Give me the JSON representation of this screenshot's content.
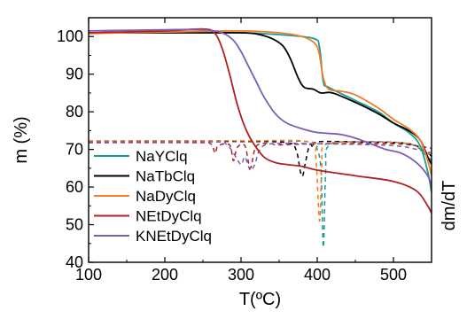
{
  "chart_data": {
    "type": "line",
    "xlabel": "T(ºC)",
    "ylabel": "m (%)",
    "y2label": "dm/dT",
    "xlim": [
      100,
      550
    ],
    "ylim": [
      40,
      105
    ],
    "xticks": [
      "100",
      "200",
      "300",
      "400",
      "500"
    ],
    "yticks": [
      "40",
      "50",
      "60",
      "70",
      "80",
      "90",
      "100"
    ],
    "legend_position": "left",
    "series": [
      {
        "name": "NaYClq",
        "color": "#169c94",
        "tg": [
          [
            100,
            101.0
          ],
          [
            200,
            101.0
          ],
          [
            300,
            101.0
          ],
          [
            350,
            100.5
          ],
          [
            395,
            99.5
          ],
          [
            403,
            97
          ],
          [
            408,
            88
          ],
          [
            415,
            86.5
          ],
          [
            450,
            83
          ],
          [
            480,
            80
          ],
          [
            500,
            77
          ],
          [
            520,
            74.5
          ],
          [
            535,
            71
          ],
          [
            545,
            64
          ],
          [
            550,
            58.5
          ]
        ],
        "dtg": [
          [
            100,
            72.2
          ],
          [
            300,
            72.2
          ],
          [
            390,
            72
          ],
          [
            400,
            70
          ],
          [
            405,
            64
          ],
          [
            408,
            44
          ],
          [
            411,
            64
          ],
          [
            415,
            71
          ],
          [
            450,
            72
          ],
          [
            520,
            71.5
          ],
          [
            545,
            68
          ],
          [
            550,
            67
          ]
        ]
      },
      {
        "name": "NaTbClq",
        "color": "#000000",
        "tg": [
          [
            100,
            101.0
          ],
          [
            250,
            101.0
          ],
          [
            300,
            101.0
          ],
          [
            320,
            100.7
          ],
          [
            340,
            99.5
          ],
          [
            355,
            97.5
          ],
          [
            365,
            94
          ],
          [
            375,
            89
          ],
          [
            383,
            86.5
          ],
          [
            395,
            86
          ],
          [
            405,
            85
          ],
          [
            420,
            85
          ],
          [
            450,
            82.5
          ],
          [
            480,
            79.5
          ],
          [
            500,
            77
          ],
          [
            520,
            75
          ],
          [
            535,
            72.5
          ],
          [
            545,
            68
          ],
          [
            550,
            66
          ]
        ],
        "dtg": [
          [
            100,
            72.1
          ],
          [
            300,
            72.1
          ],
          [
            360,
            71.8
          ],
          [
            372,
            70
          ],
          [
            378,
            64
          ],
          [
            381,
            63
          ],
          [
            384,
            66
          ],
          [
            390,
            71.2
          ],
          [
            395,
            70.5
          ],
          [
            400,
            72
          ],
          [
            450,
            72
          ],
          [
            520,
            71.5
          ],
          [
            545,
            69
          ],
          [
            550,
            68
          ]
        ]
      },
      {
        "name": "NaDyClq",
        "color": "#f07c28",
        "tg": [
          [
            100,
            100.8
          ],
          [
            200,
            101.2
          ],
          [
            300,
            101.5
          ],
          [
            350,
            101
          ],
          [
            380,
            100
          ],
          [
            395,
            98.5
          ],
          [
            402,
            96
          ],
          [
            408,
            89
          ],
          [
            415,
            86
          ],
          [
            430,
            85.5
          ],
          [
            450,
            84.5
          ],
          [
            480,
            81
          ],
          [
            500,
            78
          ],
          [
            520,
            75.5
          ],
          [
            535,
            72.5
          ],
          [
            545,
            67
          ],
          [
            550,
            63
          ]
        ],
        "dtg": [
          [
            100,
            72.3
          ],
          [
            300,
            72.3
          ],
          [
            390,
            72
          ],
          [
            398,
            68
          ],
          [
            403,
            51
          ],
          [
            406,
            66
          ],
          [
            410,
            71.2
          ],
          [
            450,
            72
          ],
          [
            520,
            71.5
          ],
          [
            545,
            69
          ],
          [
            550,
            68.5
          ]
        ]
      },
      {
        "name": "NEtDyClq",
        "color": "#b22020",
        "tg": [
          [
            100,
            101.0
          ],
          [
            200,
            101.5
          ],
          [
            250,
            102.0
          ],
          [
            265,
            101
          ],
          [
            275,
            97
          ],
          [
            285,
            90
          ],
          [
            295,
            82
          ],
          [
            305,
            76
          ],
          [
            315,
            72
          ],
          [
            330,
            68
          ],
          [
            345,
            66.5
          ],
          [
            360,
            66
          ],
          [
            380,
            65.5
          ],
          [
            400,
            64.5
          ],
          [
            450,
            63
          ],
          [
            500,
            61.5
          ],
          [
            530,
            59
          ],
          [
            545,
            55
          ],
          [
            550,
            53
          ]
        ],
        "dtg": [
          [
            100,
            71.8
          ],
          [
            240,
            71.8
          ],
          [
            260,
            71.5
          ],
          [
            266,
            69
          ],
          [
            270,
            71
          ],
          [
            285,
            71.2
          ],
          [
            290,
            67
          ],
          [
            295,
            70.5
          ],
          [
            305,
            71
          ],
          [
            312,
            65
          ],
          [
            318,
            70
          ],
          [
            325,
            71.5
          ],
          [
            340,
            71.5
          ],
          [
            350,
            71.2
          ],
          [
            400,
            71.5
          ],
          [
            500,
            71.5
          ],
          [
            545,
            70.5
          ],
          [
            550,
            70
          ]
        ]
      },
      {
        "name": "KNEtDyClq",
        "color": "#7b5cb8",
        "tg": [
          [
            100,
            101.5
          ],
          [
            200,
            101.8
          ],
          [
            250,
            101.8
          ],
          [
            275,
            101
          ],
          [
            290,
            99
          ],
          [
            300,
            96
          ],
          [
            310,
            92
          ],
          [
            320,
            88
          ],
          [
            330,
            84
          ],
          [
            345,
            79.5
          ],
          [
            360,
            77
          ],
          [
            380,
            75.5
          ],
          [
            400,
            74.5
          ],
          [
            430,
            74
          ],
          [
            450,
            73
          ],
          [
            470,
            71.5
          ],
          [
            490,
            70
          ],
          [
            510,
            69
          ],
          [
            530,
            66.5
          ],
          [
            545,
            63
          ],
          [
            550,
            60
          ]
        ],
        "dtg": [
          [
            100,
            72.0
          ],
          [
            260,
            72.0
          ],
          [
            280,
            71.5
          ],
          [
            290,
            69
          ],
          [
            300,
            66
          ],
          [
            305,
            68
          ],
          [
            312,
            64.5
          ],
          [
            318,
            66
          ],
          [
            325,
            70
          ],
          [
            340,
            71.5
          ],
          [
            400,
            71.5
          ],
          [
            500,
            71
          ],
          [
            540,
            69.5
          ],
          [
            550,
            69
          ]
        ]
      }
    ]
  }
}
